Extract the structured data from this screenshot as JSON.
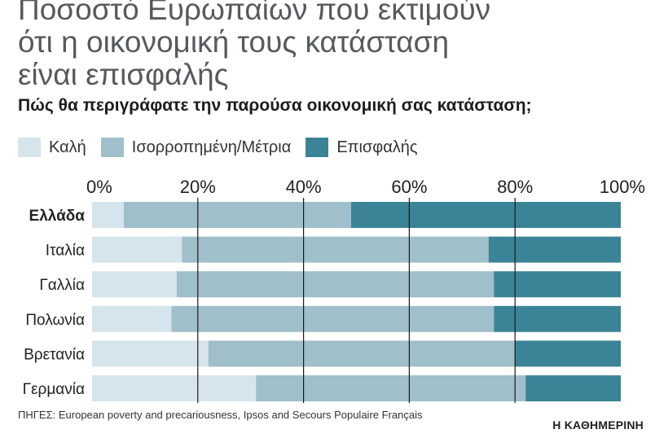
{
  "title_lines": [
    "Ποσοστό Ευρωπαίων που εκτιμούν",
    "ότι η οικονομική τους κατάσταση",
    "είναι επισφαλής"
  ],
  "chart_data": {
    "type": "bar",
    "orientation": "horizontal",
    "stacked": true,
    "title": "Ποσοστό Ευρωπαίων που εκτιμούν ότι η οικονομική τους κατάσταση είναι επισφαλής",
    "subtitle": "Πώς θα περιγράφατε την παρούσα οικονομική σας κατάσταση;",
    "categories": [
      "Ελλάδα",
      "Ιταλία",
      "Γαλλία",
      "Πολωνία",
      "Βρετανία",
      "Γερμανία"
    ],
    "highlight_category": "Ελλάδα",
    "series": [
      {
        "name": "Καλή",
        "color": "#d6e4ec",
        "values": [
          6,
          17,
          16,
          15,
          22,
          31
        ]
      },
      {
        "name": "Ισορροπημένη/Μέτρια",
        "color": "#9fbfca",
        "values": [
          43,
          58,
          60,
          61,
          58,
          51
        ]
      },
      {
        "name": "Επισφαλής",
        "color": "#3b8497",
        "values": [
          51,
          25,
          24,
          24,
          20,
          18
        ]
      }
    ],
    "x_ticks": [
      "0%",
      "20%",
      "40%",
      "60%",
      "80%",
      "100%"
    ],
    "xlim": [
      0,
      100
    ],
    "grid": true,
    "legend_position": "top-left"
  },
  "source": "ΠΗΓΕΣ: European poverty and precariousness, Ipsos and Secours Populaire Français",
  "brand": "Η ΚΑΘΗΜΕΡΙΝΗ"
}
